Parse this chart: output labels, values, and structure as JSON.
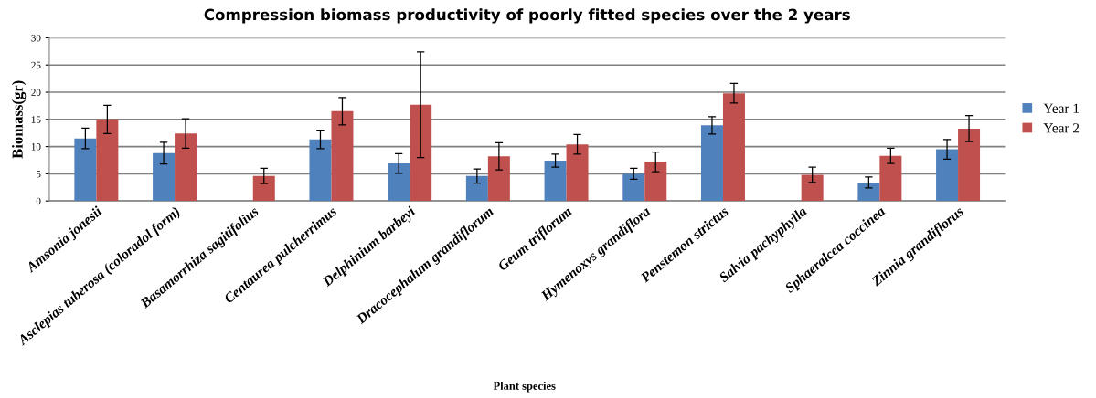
{
  "chart_data": {
    "type": "bar",
    "title": "Compression biomass productivity of poorly fitted species over the 2 years",
    "xlabel": "Plant species",
    "ylabel": "Biomass(gr)",
    "categories": [
      "Amsonia jonesii",
      "Asclepias tuberosa (coloradol form)",
      "Basamorrhiza sagitifolius",
      "Centaurea pulcherrimus",
      "Delphinium barbeyi",
      "Dracocephalum grandiflorum",
      "Geum triflorum",
      "Hymenoxys grandiflora",
      "Penstemon strictus",
      "Salvia pachyphylla",
      "Sphaeralcea coccinea",
      "Zinnia grandiflorus"
    ],
    "series": [
      {
        "name": "Year 1",
        "color": "#4f81bd",
        "values": [
          11.5,
          8.8,
          null,
          11.3,
          6.9,
          4.6,
          7.4,
          5.0,
          13.9,
          null,
          3.4,
          9.5
        ],
        "errors": [
          1.9,
          2.0,
          null,
          1.7,
          1.8,
          1.3,
          1.2,
          1.0,
          1.6,
          null,
          1.0,
          1.8
        ]
      },
      {
        "name": "Year 2",
        "color": "#c0504d",
        "values": [
          15.0,
          12.4,
          4.6,
          16.5,
          17.7,
          8.2,
          10.4,
          7.2,
          19.8,
          4.8,
          8.3,
          13.3
        ],
        "errors": [
          2.6,
          2.7,
          1.4,
          2.5,
          9.7,
          2.5,
          1.8,
          1.8,
          1.8,
          1.4,
          1.4,
          2.4
        ]
      }
    ],
    "ylim": [
      0,
      30
    ],
    "yticks": [
      0,
      5,
      10,
      15,
      20,
      25,
      30
    ],
    "grid": "y",
    "legend": "right"
  }
}
